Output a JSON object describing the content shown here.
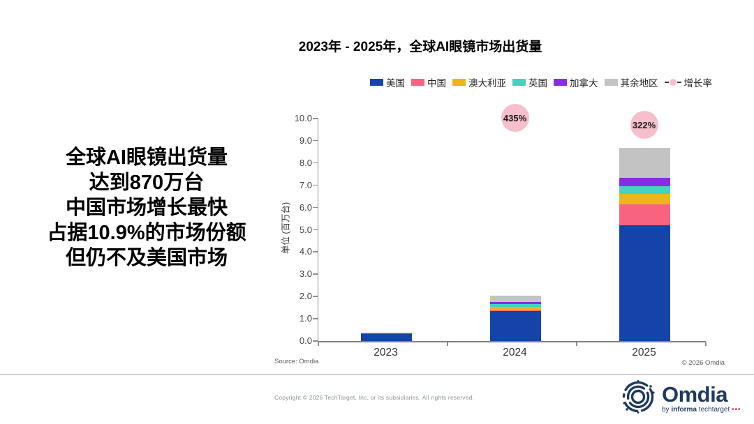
{
  "headline": {
    "lines": [
      "全球AI眼镜出货量",
      "达到870万台",
      "中国市场增长最快",
      "占据10.9%的市场份额",
      "但仍不及美国市场"
    ]
  },
  "chart_data": {
    "type": "bar",
    "stacked": true,
    "title": "2023年 - 2025年，全球AI眼镜市场出货量",
    "categories": [
      "2023",
      "2024",
      "2025"
    ],
    "series": [
      {
        "name": "美国",
        "color": "#1544a8",
        "values": [
          0.3,
          1.35,
          5.2
        ]
      },
      {
        "name": "中国",
        "color": "#f8647f",
        "values": [
          0.01,
          0.02,
          0.95
        ]
      },
      {
        "name": "澳大利亚",
        "color": "#efb517",
        "values": [
          0.01,
          0.18,
          0.45
        ]
      },
      {
        "name": "英国",
        "color": "#42d3c5",
        "values": [
          0.01,
          0.1,
          0.35
        ]
      },
      {
        "name": "加拿大",
        "color": "#8a2be2",
        "values": [
          0.01,
          0.1,
          0.4
        ]
      },
      {
        "name": "其余地区",
        "color": "#c3c3c3",
        "values": [
          0.04,
          0.3,
          1.35
        ]
      }
    ],
    "growth": {
      "name": "增长率",
      "labels": [
        "",
        "435%",
        "322%"
      ],
      "bubble_color": "#f5bfcc",
      "dash_color": "#3a3a3a"
    },
    "ylabel": "单位 (百万台)",
    "ylim": [
      0,
      10
    ],
    "ytick_step": 1,
    "legend_position": "top-right",
    "grid": false,
    "source_left": "Source: Omdia",
    "source_right": "© 2026 Omdia"
  },
  "footer": {
    "copyright": "Copyright © 2026 TechTarget, Inc. or its subsidiaries. All rights reserved.",
    "brand": {
      "name": "Omdia",
      "byline_pre": "by ",
      "byline_bold": "informa",
      "byline_rest": " techtarget ",
      "dots": "•••"
    }
  }
}
